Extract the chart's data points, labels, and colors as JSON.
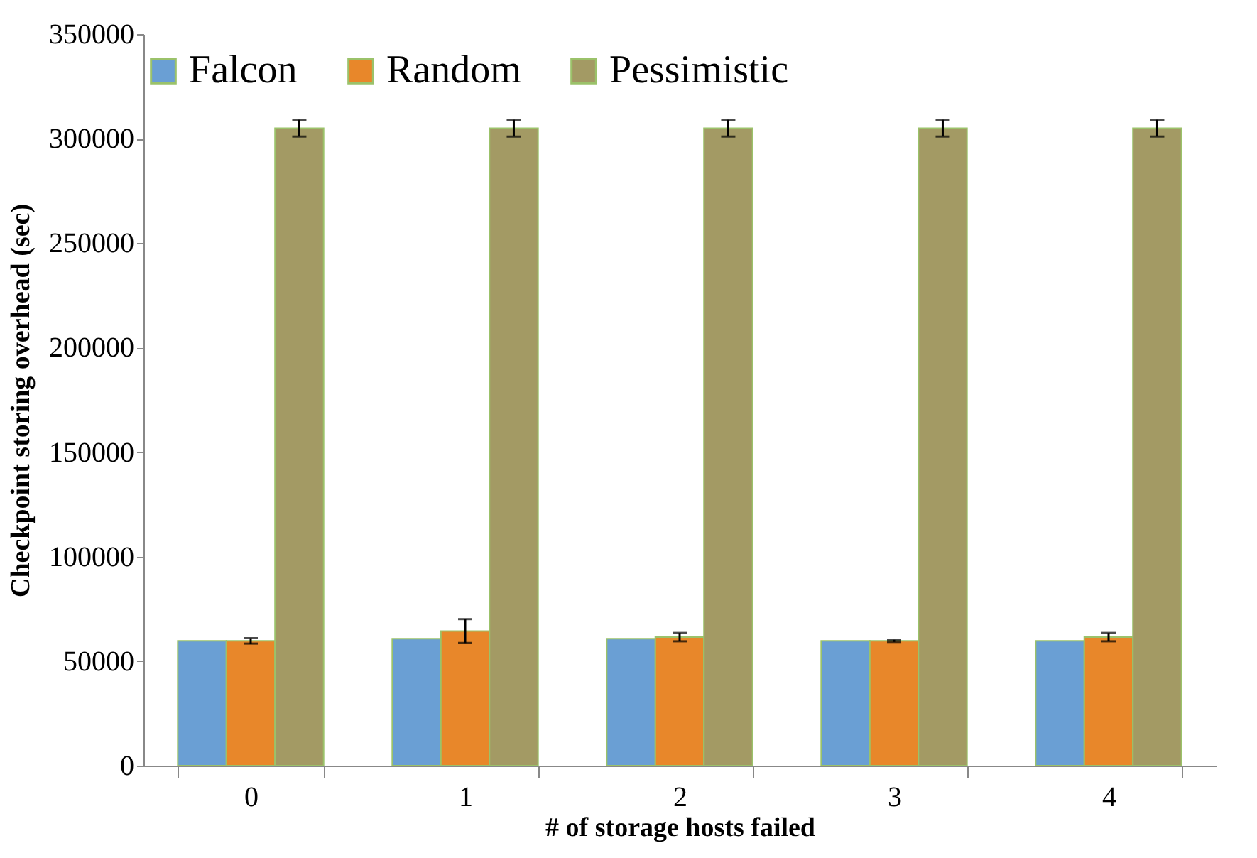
{
  "chart_data": {
    "type": "bar",
    "xlabel": "# of storage hosts failed",
    "ylabel": "Checkpoint storing overhead (sec)",
    "categories": [
      "0",
      "1",
      "2",
      "3",
      "4"
    ],
    "series": [
      {
        "name": "Falcon",
        "color": "#6a9fd4",
        "values": [
          59700,
          60700,
          60700,
          59700,
          59700
        ]
      },
      {
        "name": "Random",
        "color": "#e8872a",
        "values": [
          59700,
          64400,
          61500,
          59700,
          61500
        ],
        "errors": [
          1300,
          5700,
          2000,
          500,
          2000
        ]
      },
      {
        "name": "Pessimistic",
        "color": "#a39a64",
        "values": [
          305000,
          305000,
          305000,
          305000,
          305000
        ],
        "errors": [
          4000,
          4000,
          4000,
          4000,
          4000
        ]
      }
    ],
    "ylim": [
      0,
      350000
    ],
    "yticks": [
      0,
      50000,
      100000,
      150000,
      200000,
      250000,
      300000,
      350000
    ],
    "grid": false,
    "legend": "top"
  }
}
